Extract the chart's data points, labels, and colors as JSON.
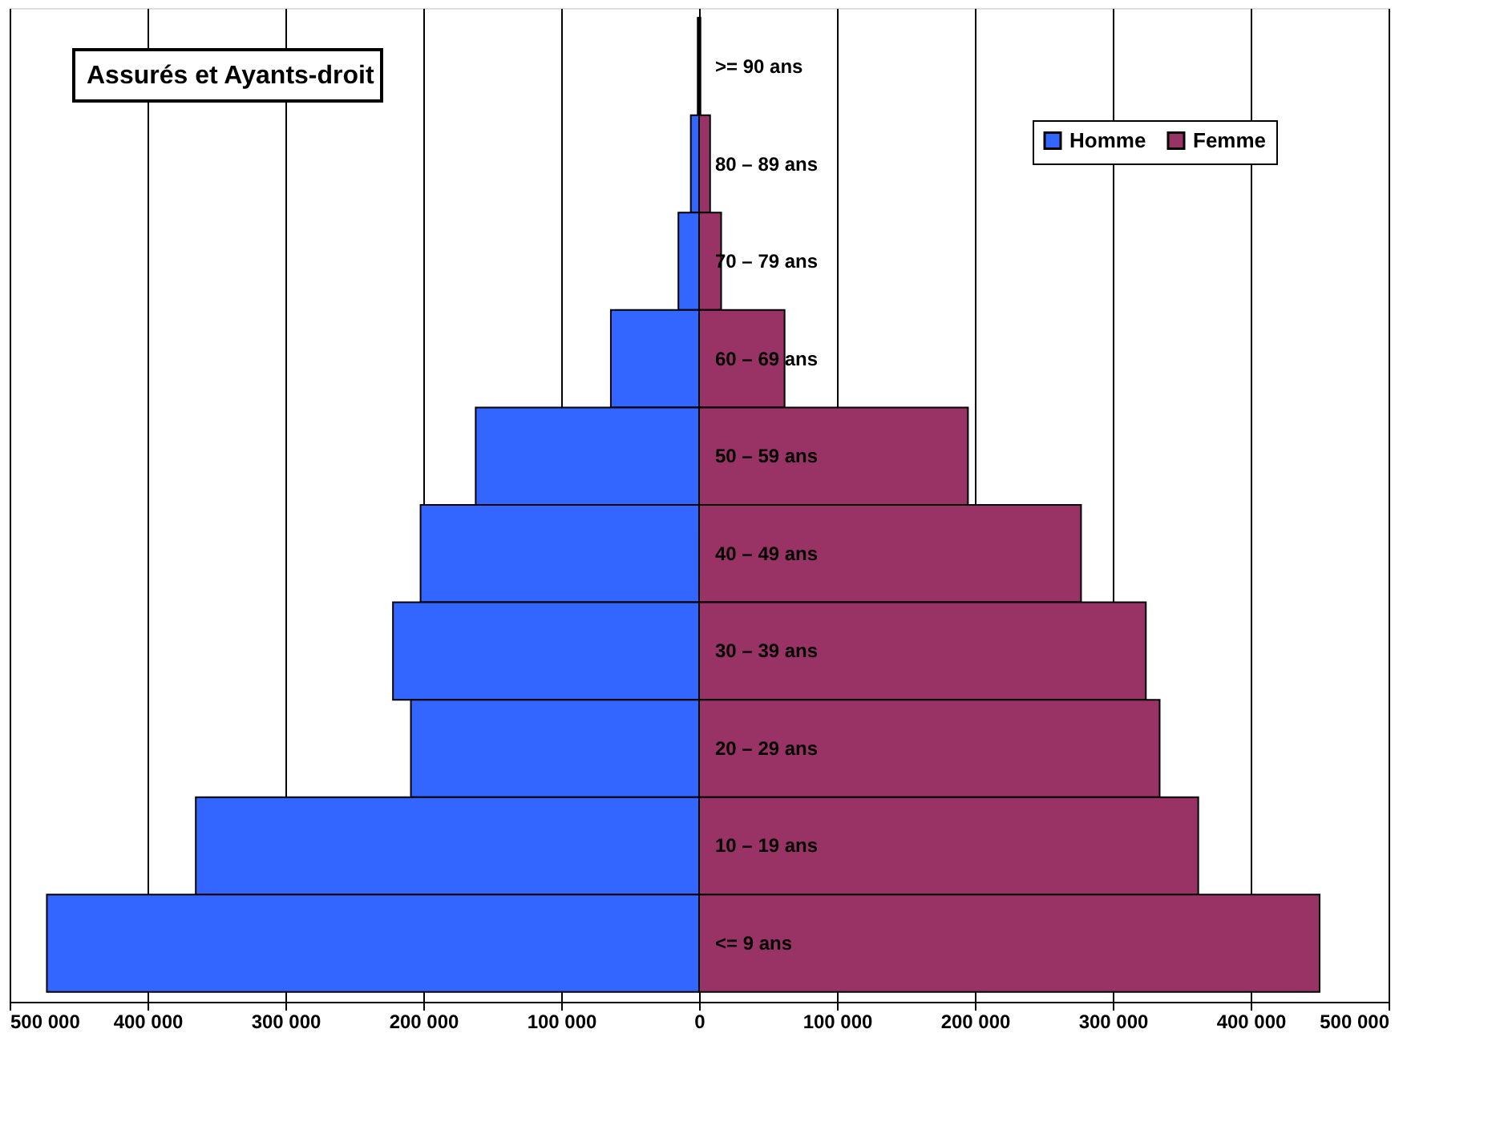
{
  "chart_data": {
    "type": "bar",
    "orientation": "horizontal",
    "stacked": true,
    "title": "Assurés et Ayants-droit",
    "categories": [
      ">= 90 ans",
      "80 – 89 ans",
      "70 – 79 ans",
      "60 – 69 ans",
      "50 – 59 ans",
      "40 – 49 ans",
      "30 – 39 ans",
      "20 – 29 ans",
      "10 – 19 ans",
      "<= 9 ans"
    ],
    "series": [
      {
        "name": "Homme",
        "color": "#3366ff",
        "values": [
          -1000,
          -6000,
          -15000,
          -64000,
          -162000,
          -202000,
          -222000,
          -209000,
          -365000,
          -473000
        ]
      },
      {
        "name": "Femme",
        "color": "#993366",
        "values": [
          1000,
          8000,
          16000,
          62000,
          195000,
          277000,
          324000,
          334000,
          362000,
          450000
        ]
      }
    ],
    "xlim": [
      -500000,
      500000
    ],
    "xticks": [
      {
        "value": -500000,
        "label": "500 000"
      },
      {
        "value": -400000,
        "label": "400 000"
      },
      {
        "value": -300000,
        "label": "300 000"
      },
      {
        "value": -200000,
        "label": "200 000"
      },
      {
        "value": -100000,
        "label": "100 000"
      },
      0,
      {
        "value": 100000,
        "label": "100 000"
      },
      {
        "value": 200000,
        "label": "200 000"
      },
      {
        "value": 300000,
        "label": "300 000"
      },
      {
        "value": 400000,
        "label": "400 000"
      },
      {
        "value": 500000,
        "label": "500 000"
      }
    ],
    "grid": "x",
    "legend": "top right"
  }
}
